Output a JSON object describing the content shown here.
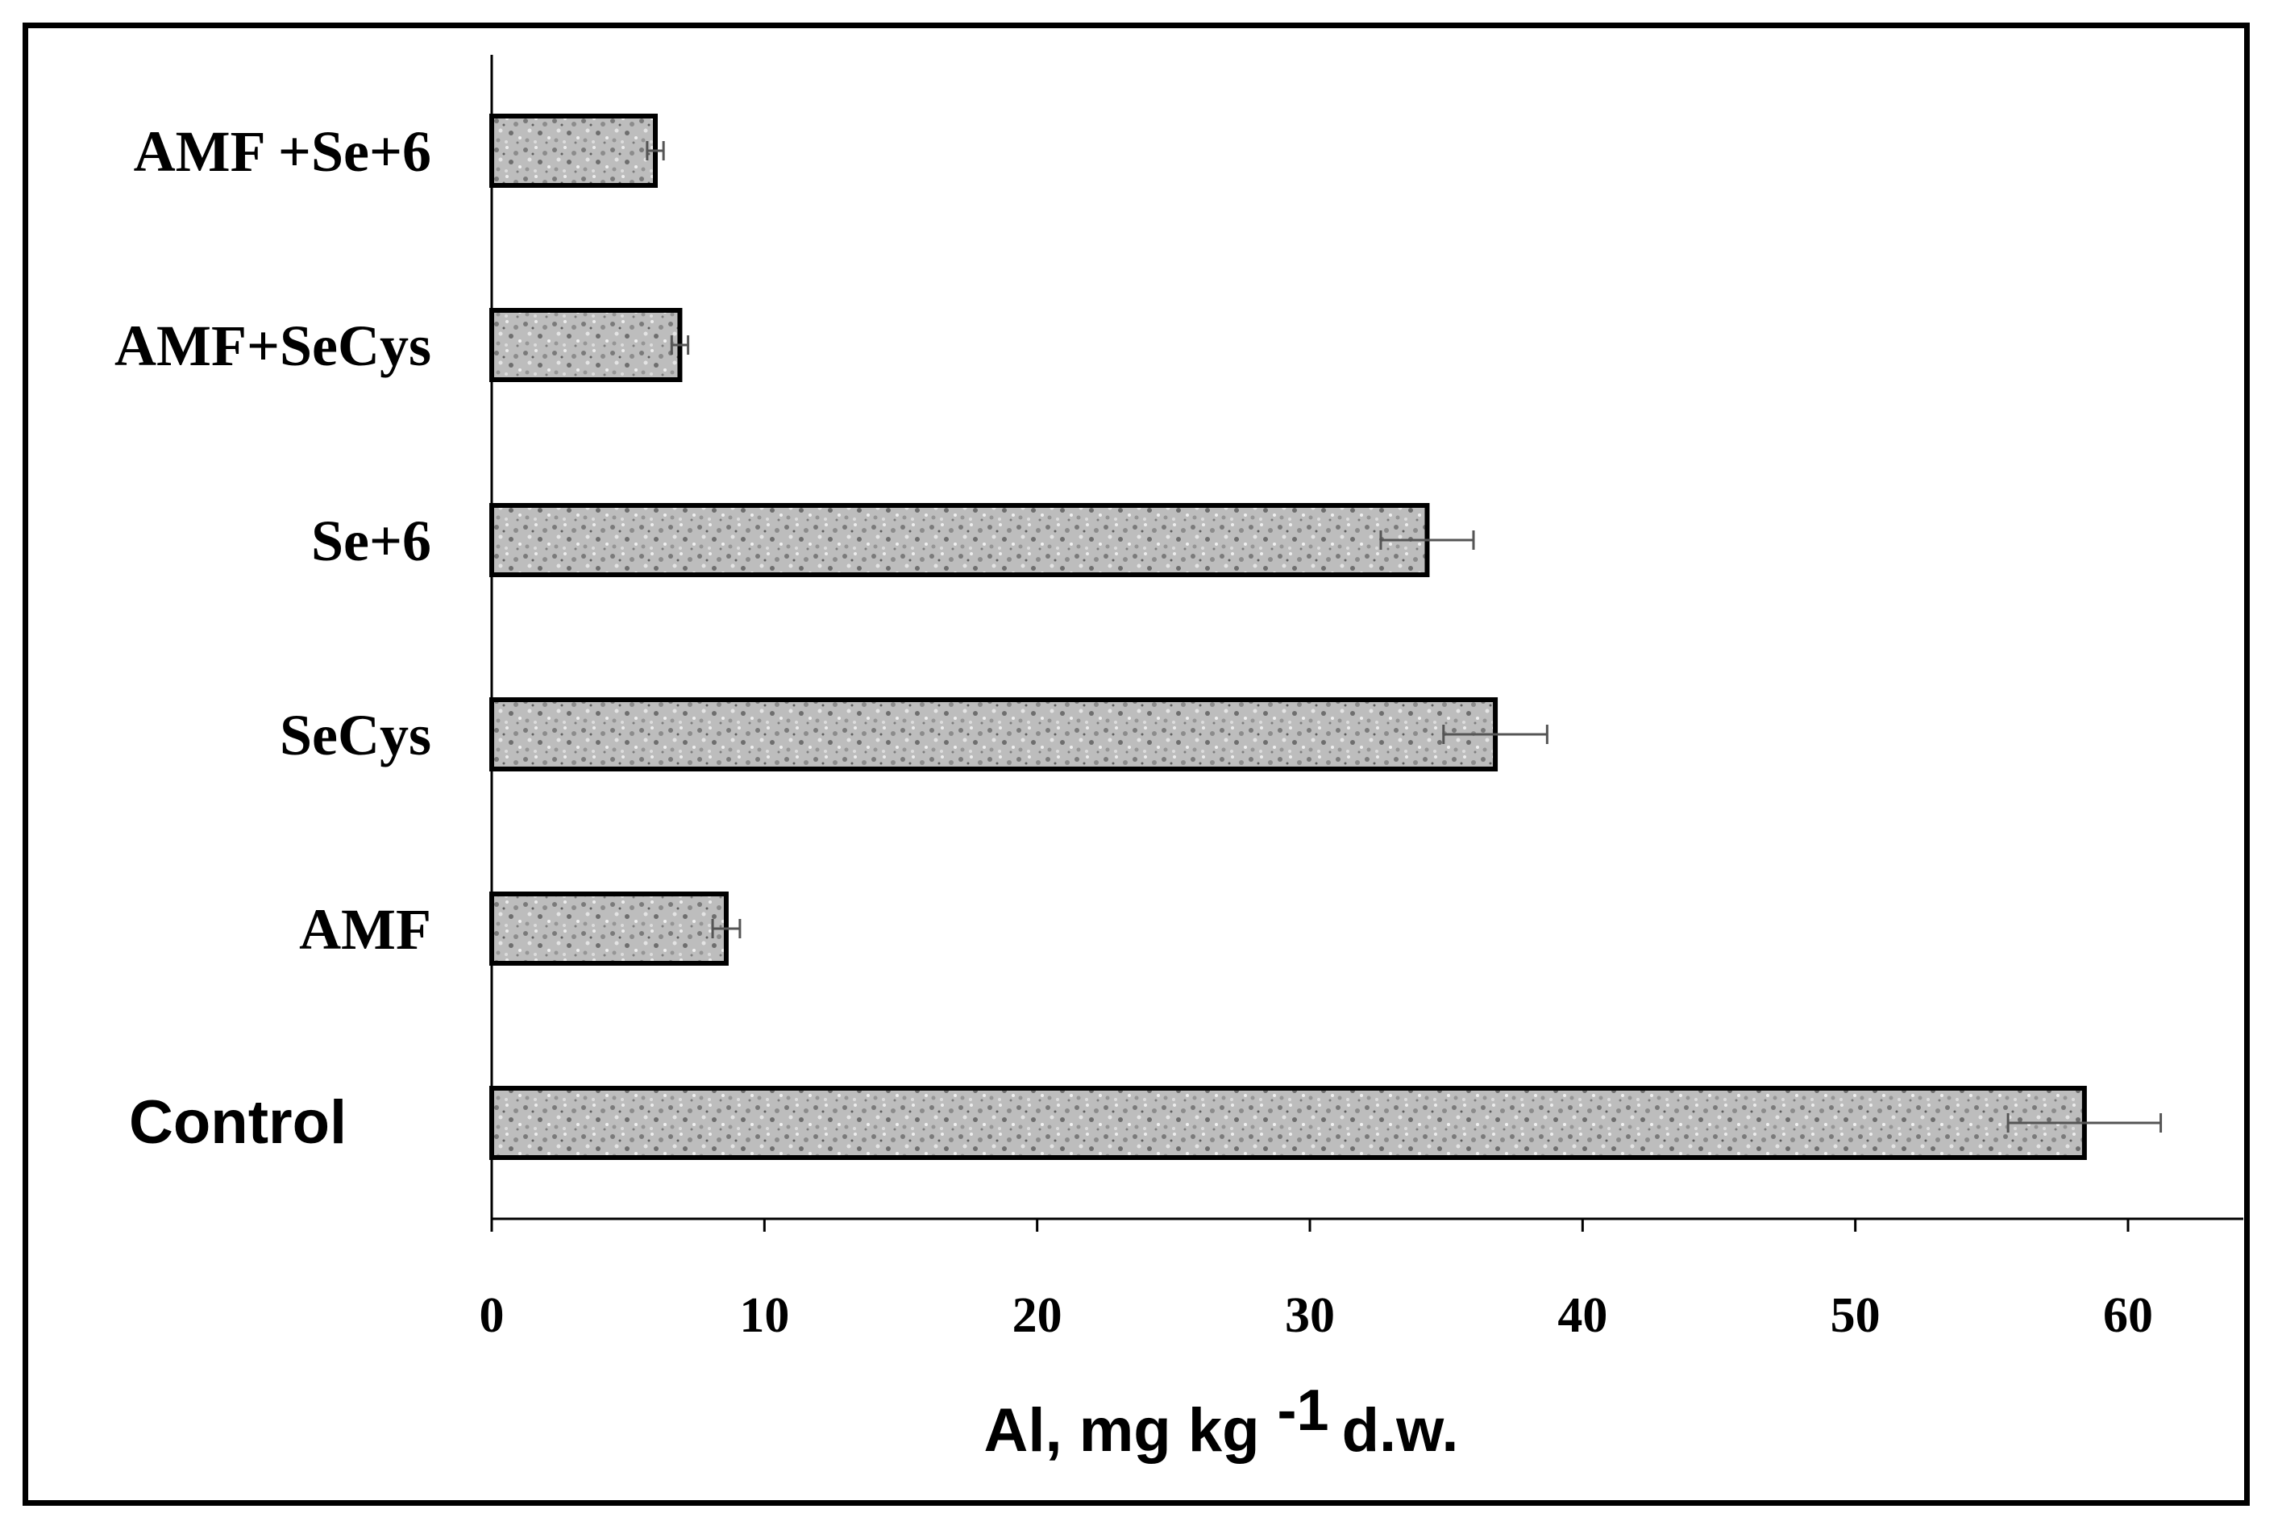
{
  "chart_data": {
    "type": "bar",
    "orientation": "horizontal",
    "categories": [
      "AMF +Se+6",
      "AMF+SeCys",
      "Se+6",
      "SeCys",
      "AMF",
      "Control"
    ],
    "values": [
      6.0,
      6.9,
      34.3,
      36.8,
      8.6,
      58.4
    ],
    "errors": [
      0.3,
      0.3,
      1.7,
      1.9,
      0.5,
      2.8
    ],
    "xlabel": {
      "main": "Al, mg kg",
      "superscript": "-1",
      "suffix": "d.w."
    },
    "xlim": [
      0,
      64
    ],
    "xticks": [
      "0",
      "10",
      "20",
      "30",
      "40",
      "50",
      "60"
    ],
    "grid": false,
    "legend": "none",
    "colors": {
      "bar_fill": "#b3b3b3",
      "bar_stroke": "#000000",
      "error_bar": "#555555",
      "axis": "#000000"
    }
  }
}
